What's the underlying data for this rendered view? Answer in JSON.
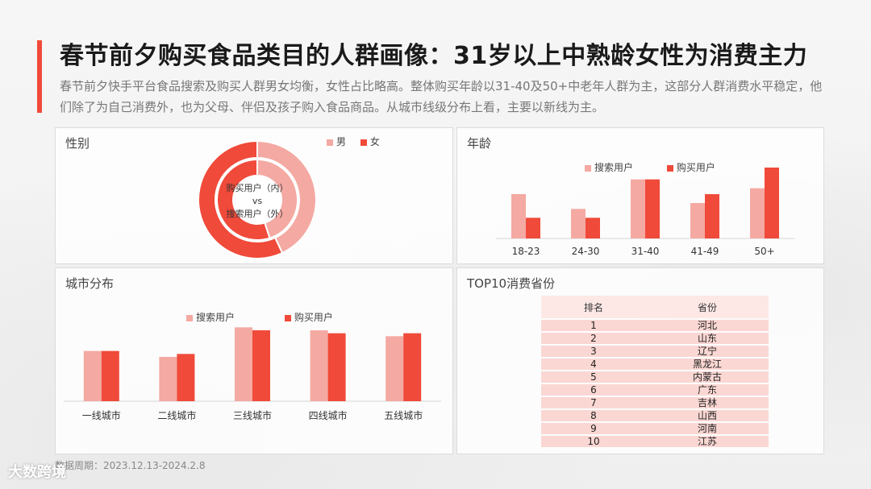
{
  "header": {
    "title": "春节前夕购买食品类目的人群画像：31岁以上中熟龄女性为消费主力",
    "subtitle": "春节前夕快手平台食品搜索及购买人群男女均衡，女性占比略高。整体购买年龄以31-40及50+中老年人群为主，这部分人群消费水平稳定，他们除了为自己消费外，也为父母、伴侣及孩子购入食品商品。从城市线级分布上看，主要以新线为主。"
  },
  "colors": {
    "male": "#f4a9a2",
    "female": "#f04a3a",
    "search": "#f4a9a2",
    "purchase": "#f04a3a"
  },
  "chart_data": [
    {
      "type": "pie",
      "panel_title": "性别",
      "center_label_line1": "购买用户（内）",
      "center_label_line2": "vs",
      "center_label_line3": "搜索用户（外）",
      "legend": [
        "男",
        "女"
      ],
      "series": [
        {
          "name": "购买用户（内）",
          "values": [
            45,
            55
          ]
        },
        {
          "name": "搜索用户（外）",
          "values": [
            43,
            57
          ]
        }
      ]
    },
    {
      "type": "bar",
      "panel_title": "年龄",
      "categories": [
        "18-23",
        "24-30",
        "31-40",
        "41-49",
        "50+"
      ],
      "series": [
        {
          "name": "搜索用户",
          "values": [
            15,
            10,
            20,
            12,
            17
          ]
        },
        {
          "name": "购买用户",
          "values": [
            7,
            7,
            20,
            15,
            24
          ]
        }
      ],
      "ylim": [
        0,
        30
      ]
    },
    {
      "type": "bar",
      "panel_title": "城市分布",
      "categories": [
        "一线城市",
        "二线城市",
        "三线城市",
        "四线城市",
        "五线城市"
      ],
      "series": [
        {
          "name": "搜索用户",
          "values": [
            17,
            15,
            25,
            24,
            22
          ]
        },
        {
          "name": "购买用户",
          "values": [
            17,
            16,
            24,
            23,
            23
          ]
        }
      ],
      "ylim": [
        0,
        30
      ]
    },
    {
      "type": "table",
      "panel_title": "TOP10消费省份",
      "columns": [
        "排名",
        "省份"
      ],
      "rows": [
        [
          "1",
          "河北"
        ],
        [
          "2",
          "山东"
        ],
        [
          "3",
          "辽宁"
        ],
        [
          "4",
          "黑龙江"
        ],
        [
          "5",
          "内蒙古"
        ],
        [
          "6",
          "广东"
        ],
        [
          "7",
          "吉林"
        ],
        [
          "8",
          "山西"
        ],
        [
          "9",
          "河南"
        ],
        [
          "10",
          "江苏"
        ]
      ]
    }
  ],
  "footer": {
    "source": "数据周期：2023.12.13-2024.2.8",
    "logo": "大数跨境"
  }
}
